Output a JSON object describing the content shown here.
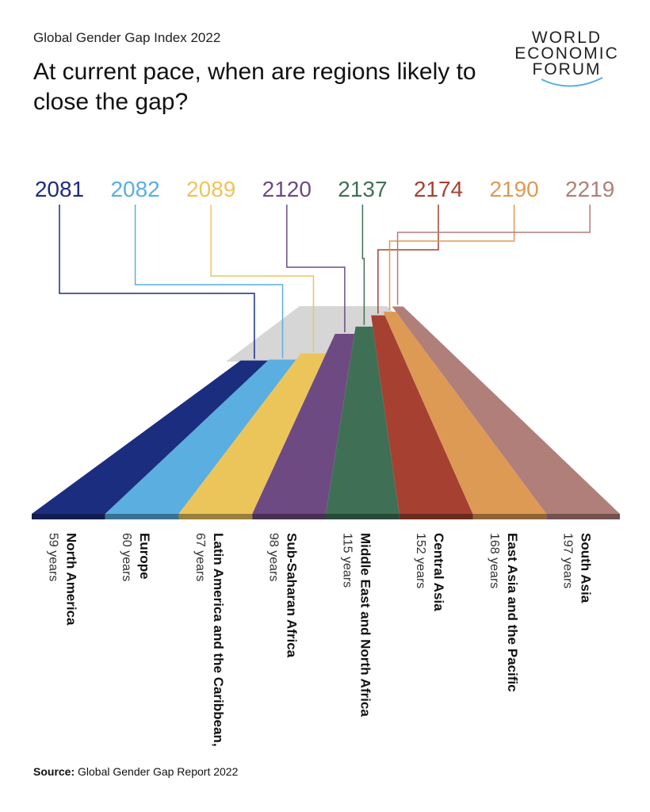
{
  "chart_data": {
    "type": "bar",
    "kicker": "Global Gender Gap Index 2022",
    "title": "At current pace, when are regions likely to close the gap?",
    "logo": [
      "WORLD",
      "ECONOMIC",
      "FORUM"
    ],
    "categories": [
      "North America",
      "Europe",
      "Latin America and the Caribbean,",
      "Sub-Saharan Africa",
      "Middle East and North Africa",
      "Central Asia",
      "East Asia and the Pacific",
      "South Asia"
    ],
    "values": [
      59,
      60,
      67,
      98,
      115,
      152,
      168,
      197
    ],
    "value_labels": [
      "59 years",
      "60 years",
      "67 years",
      "98 years",
      "115 years",
      "152 years",
      "168 years",
      "197 years"
    ],
    "close_years": [
      2081,
      2082,
      2089,
      2120,
      2137,
      2174,
      2190,
      2219
    ],
    "colors": [
      "#1b2d7f",
      "#5aaee0",
      "#ecc55a",
      "#6e4a82",
      "#3f7056",
      "#a64131",
      "#dd9a55",
      "#b07f7a"
    ],
    "source_label": "Source:",
    "source": "Global Gender Gap Report 2022"
  }
}
